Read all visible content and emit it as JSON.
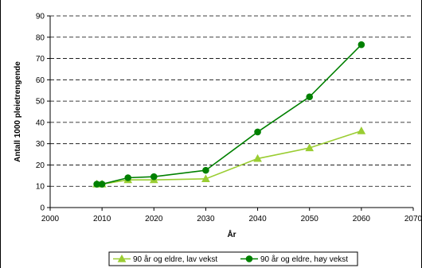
{
  "chart_data": {
    "type": "line",
    "title": "",
    "xlabel": "År",
    "ylabel": "Antall 1000 pleietrengende",
    "xlim": [
      2000,
      2070
    ],
    "ylim": [
      0,
      90
    ],
    "x_ticks": [
      2000,
      2010,
      2020,
      2030,
      2040,
      2050,
      2060,
      2070
    ],
    "y_ticks": [
      0,
      10,
      20,
      30,
      40,
      50,
      60,
      70,
      80,
      90
    ],
    "grid": "horizontal dashed",
    "legend_position": "bottom",
    "series": [
      {
        "name": "90 år og eldre, lav vekst",
        "marker": "triangle",
        "color": "#9acd32",
        "x": [
          2009,
          2010,
          2015,
          2020,
          2030,
          2040,
          2050,
          2060
        ],
        "y": [
          11,
          11,
          13,
          13,
          13.5,
          23,
          28,
          36
        ]
      },
      {
        "name": "90 år og eldre, høy vekst",
        "marker": "circle",
        "color": "#008000",
        "x": [
          2009,
          2010,
          2015,
          2020,
          2030,
          2040,
          2050,
          2060
        ],
        "y": [
          11,
          11,
          14,
          14.5,
          17.5,
          35.5,
          52,
          76.5
        ]
      }
    ]
  }
}
